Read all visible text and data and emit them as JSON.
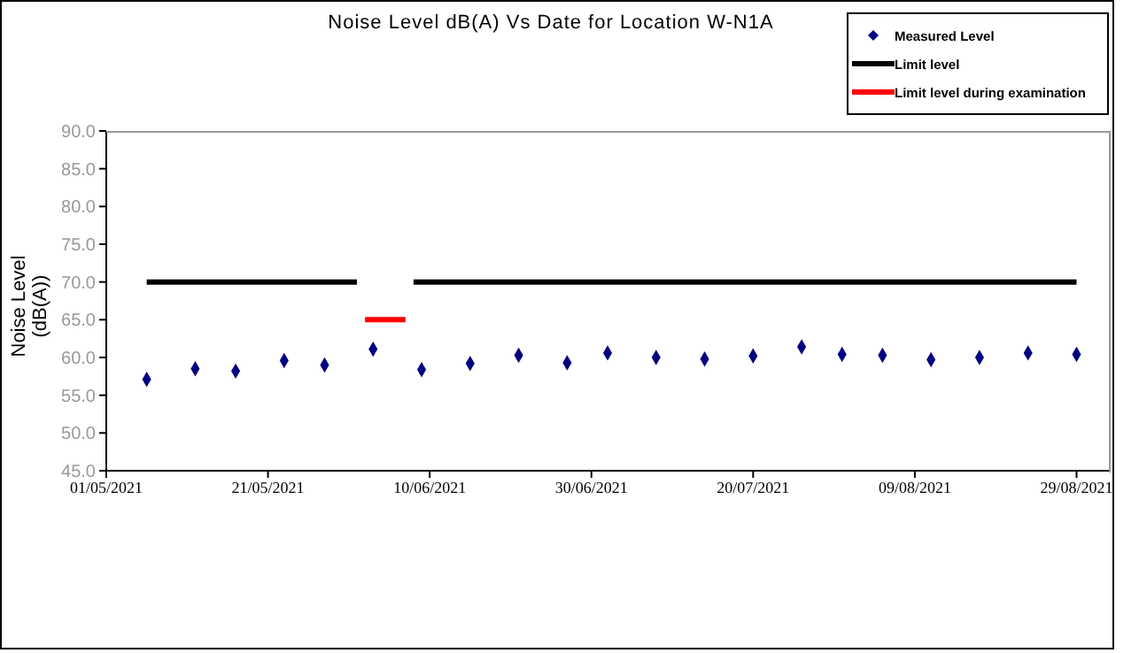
{
  "chart_data": {
    "type": "scatter",
    "title": "Noise Level dB(A) Vs Date for Location W-N1A",
    "ylabel": "Noise Level (dB(A))",
    "x": [
      "2021-05-06",
      "2021-05-12",
      "2021-05-17",
      "2021-05-23",
      "2021-05-28",
      "2021-06-03",
      "2021-06-09",
      "2021-06-15",
      "2021-06-21",
      "2021-06-27",
      "2021-07-02",
      "2021-07-08",
      "2021-07-14",
      "2021-07-20",
      "2021-07-26",
      "2021-07-31",
      "2021-08-05",
      "2021-08-11",
      "2021-08-17",
      "2021-08-23",
      "2021-08-29"
    ],
    "series": [
      {
        "name": "Measured Level",
        "color": "#000080",
        "marker": "diamond",
        "values": [
          57.1,
          58.5,
          58.2,
          59.6,
          59.0,
          61.1,
          58.4,
          59.2,
          60.3,
          59.3,
          60.6,
          60.0,
          59.8,
          60.2,
          61.4,
          60.4,
          60.3,
          59.7,
          60.0,
          60.6,
          60.4
        ]
      },
      {
        "name": "Limit level",
        "type": "line",
        "color": "#000000",
        "marker": "none",
        "x": [
          "2021-05-06",
          "2021-06-01",
          "2021-06-04",
          "2021-06-08",
          "2021-08-29"
        ],
        "values": [
          70,
          70,
          null,
          70,
          70
        ]
      },
      {
        "name": "Limit level during examination",
        "type": "line",
        "color": "#ff0000",
        "marker": "none",
        "x": [
          "2021-06-02",
          "2021-06-07"
        ],
        "values": [
          65,
          65
        ]
      }
    ],
    "xlim": [
      "2021-05-01",
      "2021-09-02"
    ],
    "xticks": [
      {
        "value": "2021-05-01",
        "label": "01/05/2021"
      },
      {
        "value": "2021-05-21",
        "label": "21/05/2021"
      },
      {
        "value": "2021-06-10",
        "label": "10/06/2021"
      },
      {
        "value": "2021-06-30",
        "label": "30/06/2021"
      },
      {
        "value": "2021-07-20",
        "label": "20/07/2021"
      },
      {
        "value": "2021-08-09",
        "label": "09/08/2021"
      },
      {
        "value": "2021-08-29",
        "label": "29/08/2021"
      }
    ],
    "ylim": [
      45,
      90
    ],
    "yticks": [
      {
        "value": 45,
        "label": "45.0"
      },
      {
        "value": 50,
        "label": "50.0"
      },
      {
        "value": 55,
        "label": "55.0"
      },
      {
        "value": 60,
        "label": "60.0"
      },
      {
        "value": 65,
        "label": "65.0"
      },
      {
        "value": 70,
        "label": "70.0"
      },
      {
        "value": 75,
        "label": "75.0"
      },
      {
        "value": 80,
        "label": "80.0"
      },
      {
        "value": 85,
        "label": "85.0"
      },
      {
        "value": 90,
        "label": "90.0"
      }
    ],
    "grid": false,
    "legend": "top right"
  }
}
